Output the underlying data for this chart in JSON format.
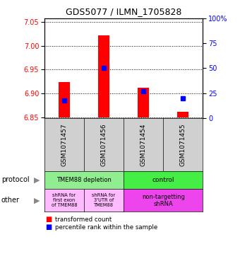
{
  "title": "GDS5077 / ILMN_1705828",
  "samples": [
    "GSM1071457",
    "GSM1071456",
    "GSM1071454",
    "GSM1071455"
  ],
  "red_values": [
    6.924,
    7.022,
    6.912,
    6.862
  ],
  "red_base": 6.85,
  "ylim_left": [
    6.848,
    7.058
  ],
  "yticks_left": [
    6.85,
    6.9,
    6.95,
    7.0,
    7.05
  ],
  "yticks_right": [
    0,
    25,
    50,
    75,
    100
  ],
  "blue_percentiles": [
    18,
    50,
    27,
    20
  ],
  "legend_red": "transformed count",
  "legend_blue": "percentile rank within the sample",
  "protocol_bg1": "#90EE90",
  "protocol_bg2": "#44ee44",
  "other_bg1": "#ffbbff",
  "other_bg2": "#ee44ee",
  "sample_bg": "#d0d0d0"
}
